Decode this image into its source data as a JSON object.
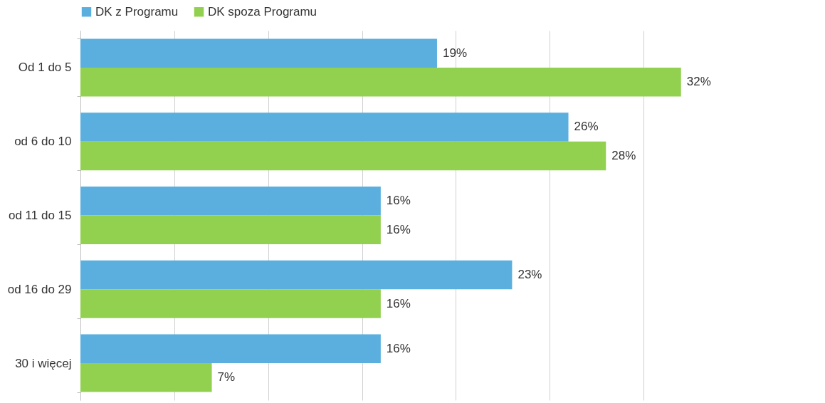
{
  "chart_data": {
    "type": "bar",
    "orientation": "horizontal",
    "categories": [
      "Od 1 do 5",
      "od 6 do 10",
      "od 11 do 15",
      "od 16 do 29",
      "30 i więcej"
    ],
    "series": [
      {
        "name": "DK z Programu",
        "color": "#5aafdf",
        "values": [
          19,
          26,
          16,
          23,
          16
        ],
        "value_labels": [
          "19%",
          "26%",
          "16%",
          "23%",
          "16%"
        ]
      },
      {
        "name": "DK spoza Programu",
        "color": "#92d050",
        "values": [
          32,
          28,
          16,
          16,
          7
        ],
        "value_labels": [
          "32%",
          "28%",
          "16%",
          "16%",
          "7%"
        ]
      }
    ],
    "xticks": [
      {
        "value": 0,
        "label": null
      },
      {
        "value": 5,
        "label": null
      },
      {
        "value": 10,
        "label": null
      },
      {
        "value": 15,
        "label": null
      },
      {
        "value": 20,
        "label": null
      },
      {
        "value": 25,
        "label": null
      },
      {
        "value": 30,
        "label": null
      }
    ],
    "grid": "x",
    "legend": "top",
    "tick_labels": "y"
  }
}
